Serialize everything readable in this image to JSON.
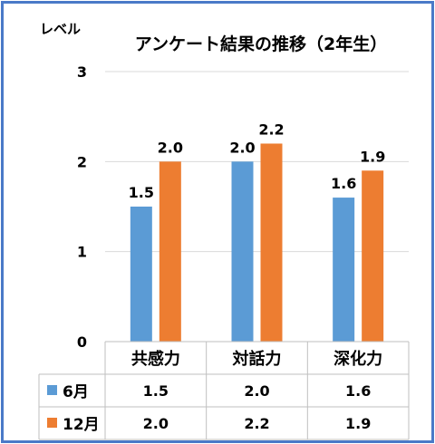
{
  "chart_data": {
    "type": "bar",
    "title": "アンケート結果の推移（2年生）",
    "ylabel": "レベル",
    "xlabel": "",
    "categories": [
      "共感力",
      "対話力",
      "深化力"
    ],
    "series": [
      {
        "name": "6月",
        "values": [
          1.5,
          2.0,
          1.6
        ],
        "labels": [
          "1.5",
          "2.0",
          "1.6"
        ],
        "color": "#5b9bd5"
      },
      {
        "name": "12月",
        "values": [
          2.0,
          2.2,
          1.9
        ],
        "labels": [
          "2.0",
          "2.2",
          "1.9"
        ],
        "color": "#ed7d31"
      }
    ],
    "ylim": [
      0,
      3
    ],
    "yticks": [
      "0",
      "1",
      "2",
      "3"
    ],
    "grid": true,
    "legend": "data-table below chart"
  },
  "colors": {
    "border": "#4a7ac8",
    "grid": "#d9d9d9",
    "table_line": "#bfbfbf"
  }
}
